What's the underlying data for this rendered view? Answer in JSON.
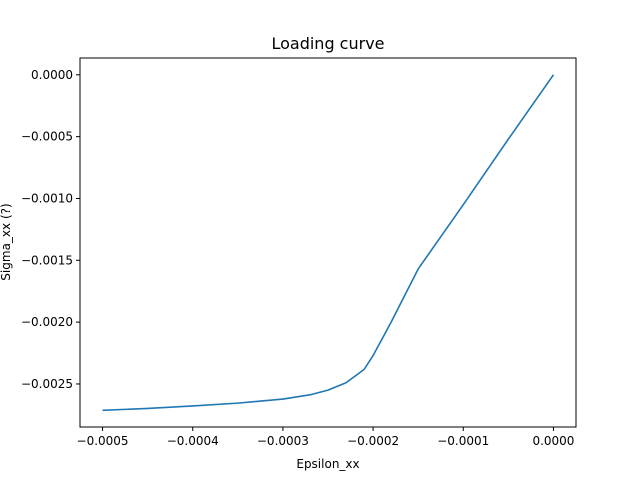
{
  "chart_data": {
    "type": "line",
    "title": "Loading curve",
    "xlabel": "Epsilon_xx",
    "ylabel": "Sigma_xx (?)",
    "xlim": [
      -0.000525,
      2.5e-05
    ],
    "ylim": [
      -0.002848,
      0.000136
    ],
    "grid": false,
    "line_color": "#1f77b4",
    "xticks": [
      -0.0005,
      -0.0004,
      -0.0003,
      -0.0002,
      -0.0001,
      0.0
    ],
    "xtick_labels": [
      "−0.0005",
      "−0.0004",
      "−0.0003",
      "−0.0002",
      "−0.0001",
      "0.0000"
    ],
    "yticks": [
      0.0,
      -0.0005,
      -0.001,
      -0.0015,
      -0.002,
      -0.0025
    ],
    "ytick_labels": [
      "0.0000",
      "−0.0005",
      "−0.0010",
      "−0.0015",
      "−0.0020",
      "−0.0025"
    ],
    "series": [
      {
        "x": [
          -0.0005,
          -0.00045,
          -0.0004,
          -0.00035,
          -0.0003,
          -0.00027,
          -0.00025,
          -0.00023,
          -0.00021,
          -0.0002,
          -0.00018,
          -0.00015,
          -0.0001,
          -5e-05,
          0.0
        ],
        "y": [
          -0.002713,
          -0.002698,
          -0.002678,
          -0.002655,
          -0.002622,
          -0.002588,
          -0.00255,
          -0.00249,
          -0.002383,
          -0.00227,
          -0.002,
          -0.00157,
          -0.00105,
          -0.00052,
          0.0
        ]
      }
    ]
  }
}
